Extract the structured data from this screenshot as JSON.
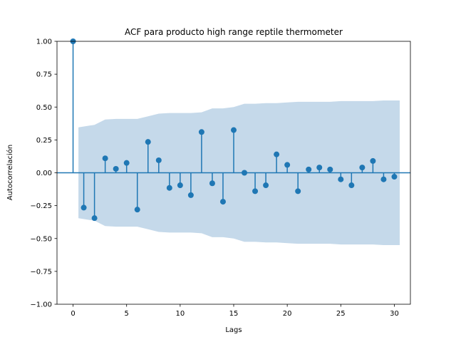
{
  "chart_data": {
    "type": "stem",
    "title": "ACF para producto high range reptile thermometer",
    "xlabel": "Lags",
    "ylabel": "Autocorrelación",
    "xlim": [
      -1.5,
      31.5
    ],
    "ylim": [
      -1.0,
      1.0
    ],
    "xticks": [
      0,
      5,
      10,
      15,
      20,
      25,
      30
    ],
    "yticks": [
      -1.0,
      -0.75,
      -0.5,
      -0.25,
      0.0,
      0.25,
      0.5,
      0.75,
      1.0
    ],
    "ytick_labels": [
      "−1.00",
      "−0.75",
      "−0.50",
      "−0.25",
      "0.00",
      "0.25",
      "0.50",
      "0.75",
      "1.00"
    ],
    "xtick_labels": [
      "0",
      "5",
      "10",
      "15",
      "20",
      "25",
      "30"
    ],
    "lags": [
      0,
      1,
      2,
      3,
      4,
      5,
      6,
      7,
      8,
      9,
      10,
      11,
      12,
      13,
      14,
      15,
      16,
      17,
      18,
      19,
      20,
      21,
      22,
      23,
      24,
      25,
      26,
      27,
      28,
      29,
      30
    ],
    "acf": [
      1.0,
      -0.265,
      -0.345,
      0.11,
      0.03,
      0.075,
      -0.28,
      0.235,
      0.095,
      -0.115,
      -0.095,
      -0.17,
      0.31,
      -0.08,
      -0.22,
      0.325,
      0.0,
      -0.14,
      -0.095,
      0.14,
      0.06,
      -0.14,
      0.025,
      0.04,
      0.025,
      -0.05,
      -0.095,
      0.04,
      0.09,
      -0.05,
      -0.03
    ],
    "confint_upper": [
      null,
      0.345,
      0.365,
      0.405,
      0.41,
      0.41,
      0.41,
      0.43,
      0.45,
      0.455,
      0.455,
      0.455,
      0.46,
      0.49,
      0.49,
      0.5,
      0.525,
      0.525,
      0.53,
      0.53,
      0.535,
      0.54,
      0.54,
      0.54,
      0.54,
      0.545,
      0.545,
      0.545,
      0.545,
      0.55,
      0.55
    ],
    "colors": {
      "stem": "#1f77b4",
      "marker": "#1f77b4",
      "zero_line": "#1f77b4",
      "confidence_band": "#c5d9ea"
    },
    "grid": false
  }
}
